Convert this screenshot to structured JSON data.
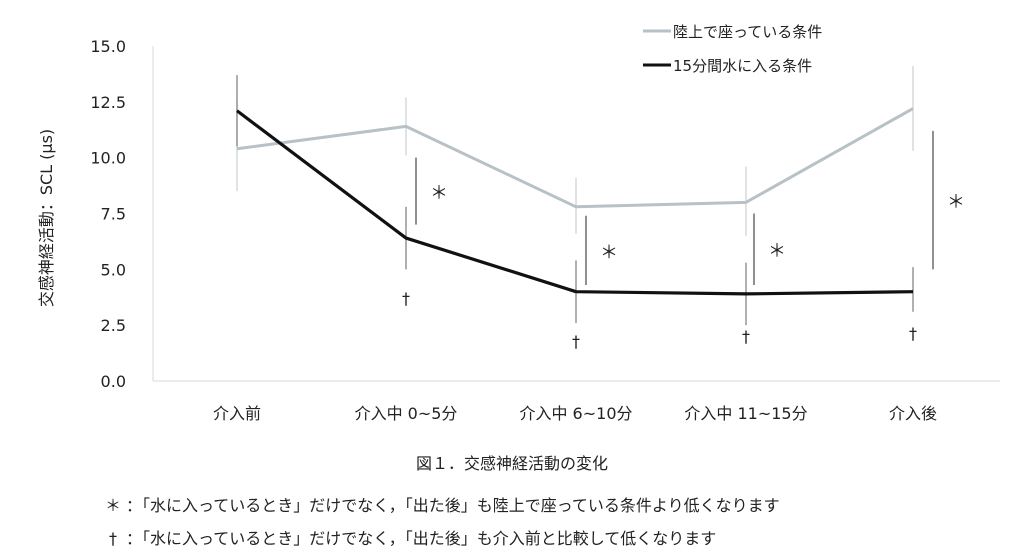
{
  "chart_data": {
    "type": "line",
    "categories": [
      "介入前",
      "介入中 0~5分",
      "介入中 6~10分",
      "介入中 11~15分",
      "介入後"
    ],
    "ylabel": "交感神経活動：SCL (μs)",
    "ylim": [
      0,
      15
    ],
    "yticks": [
      "0.0",
      "2.5",
      "5.0",
      "7.5",
      "10.0",
      "12.5",
      "15.0"
    ],
    "series": [
      {
        "name": "陸上で座っている条件",
        "color": "#b7c1c6",
        "values": [
          10.4,
          11.4,
          7.8,
          8.0,
          12.2
        ],
        "err_low": [
          8.5,
          10.1,
          6.6,
          6.5,
          10.3
        ],
        "err_high": [
          12.6,
          12.7,
          9.1,
          9.6,
          14.1
        ]
      },
      {
        "name": "15分間水に入る条件",
        "color": "#111111",
        "values": [
          12.1,
          6.4,
          4.0,
          3.9,
          4.0
        ],
        "err_low": [
          10.5,
          5.0,
          2.6,
          2.5,
          3.1
        ],
        "err_high": [
          13.7,
          7.8,
          5.4,
          5.3,
          5.1
        ]
      }
    ],
    "significance": [
      {
        "category_index": 1,
        "symbol": "＊",
        "low": 7.0,
        "high": 10.0
      },
      {
        "category_index": 2,
        "symbol": "＊",
        "low": 4.3,
        "high": 7.4
      },
      {
        "category_index": 3,
        "symbol": "＊",
        "low": 4.3,
        "high": 7.5
      },
      {
        "category_index": 4,
        "symbol": "＊",
        "low": 5.0,
        "high": 11.2
      }
    ],
    "dagger_marks": [
      {
        "category_index": 1,
        "symbol": "†"
      },
      {
        "category_index": 2,
        "symbol": "†"
      },
      {
        "category_index": 3,
        "symbol": "†"
      },
      {
        "category_index": 4,
        "symbol": "†"
      }
    ],
    "legend_position": "top-right"
  },
  "caption": "図１．交感神経活動の変化",
  "notes": [
    {
      "symbol": "＊",
      "text": "：「水に入っているとき」だけでなく，「出た後」も陸上で座っている条件より低くなります"
    },
    {
      "symbol": "†",
      "text": "：「水に入っているとき」だけでなく，「出た後」も介入前と比較して低くなります"
    }
  ]
}
